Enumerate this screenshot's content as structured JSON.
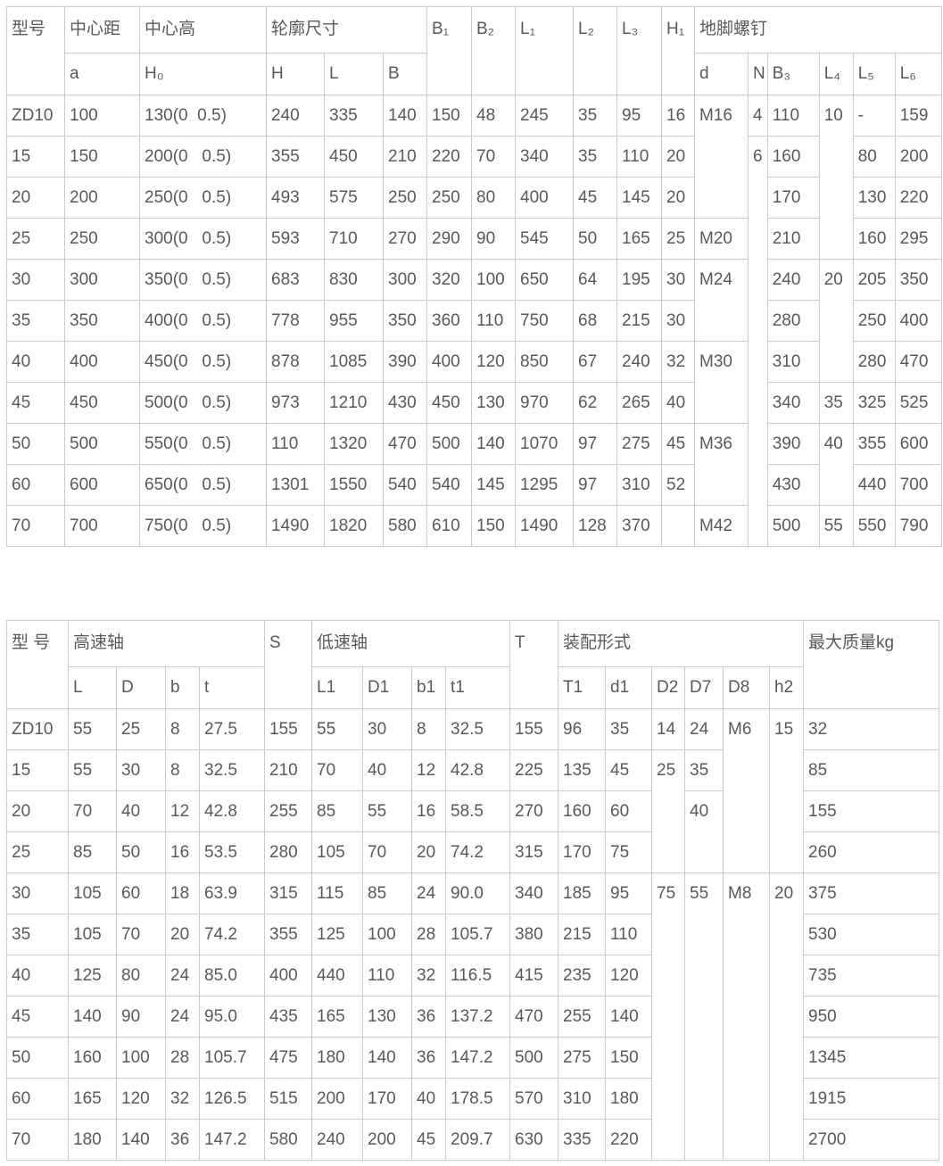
{
  "table1": {
    "header": [
      [
        {
          "t": "型号",
          "rs": 2
        },
        {
          "t": "中心距"
        },
        {
          "t": "中心高"
        },
        {
          "t": "轮廓尺寸",
          "cs": 3
        },
        {
          "t": "B₁",
          "rs": 2
        },
        {
          "t": "B₂",
          "rs": 2
        },
        {
          "t": "L₁",
          "rs": 2
        },
        {
          "t": "L₂",
          "rs": 2
        },
        {
          "t": "L₃",
          "rs": 2
        },
        {
          "t": "H₁",
          "rs": 2
        },
        {
          "t": "地脚螺钉",
          "cs": 6
        }
      ],
      [
        "a",
        "H₀",
        "H",
        "L",
        "B",
        "d",
        "N",
        "B₃",
        "L₄",
        "L₅",
        "L₆"
      ]
    ],
    "rows": [
      [
        "ZD10",
        "100",
        "130(0  0.5)",
        "240",
        "335",
        "140",
        "150",
        "48",
        "245",
        "35",
        "95",
        "16",
        {
          "t": "M16",
          "rs": 3
        },
        "4",
        "110",
        {
          "t": "10",
          "rs": 4
        },
        "-",
        "159"
      ],
      [
        "15",
        "150",
        "200(0   0.5)",
        "355",
        "450",
        "210",
        "220",
        "70",
        "340",
        "35",
        "110",
        "20",
        {
          "t": "6",
          "rs": 10
        },
        "160",
        "80",
        "200"
      ],
      [
        "20",
        "200",
        "250(0   0.5)",
        "493",
        "575",
        "250",
        "250",
        "80",
        "400",
        "45",
        "145",
        "20",
        "170",
        "130",
        "220"
      ],
      [
        "25",
        "250",
        "300(0   0.5)",
        "593",
        "710",
        "270",
        "290",
        "90",
        "545",
        "50",
        "165",
        "25",
        "M20",
        "210",
        "160",
        "295"
      ],
      [
        "30",
        "300",
        "350(0   0.5)",
        "683",
        "830",
        "300",
        "320",
        "100",
        "650",
        "64",
        "195",
        "30",
        {
          "t": "M24",
          "rs": 2
        },
        "240",
        {
          "t": "20",
          "rs": 3
        },
        "205",
        "350"
      ],
      [
        "35",
        "350",
        "400(0   0.5)",
        "778",
        "955",
        "350",
        "360",
        "110",
        "750",
        "68",
        "215",
        "30",
        "280",
        "250",
        "400"
      ],
      [
        "40",
        "400",
        "450(0   0.5)",
        "878",
        "1085",
        "390",
        "400",
        "120",
        "850",
        "67",
        "240",
        "32",
        {
          "t": "M30",
          "rs": 2
        },
        "310",
        "280",
        "470"
      ],
      [
        "45",
        "450",
        "500(0   0.5)",
        "973",
        "1210",
        "430",
        "450",
        "130",
        "970",
        "62",
        "265",
        "40",
        "340",
        "35",
        "325",
        "525"
      ],
      [
        "50",
        "500",
        "550(0   0.5)",
        "110",
        "1320",
        "470",
        "500",
        "140",
        "1070",
        "97",
        "275",
        "45",
        {
          "t": "M36",
          "rs": 2
        },
        "390",
        {
          "t": "40",
          "rs": 2
        },
        "355",
        "600"
      ],
      [
        "60",
        "600",
        "650(0   0.5)",
        "1301",
        "1550",
        "540",
        "540",
        "145",
        "1295",
        "97",
        "310",
        "52",
        "430",
        "440",
        "700"
      ],
      [
        "70",
        "700",
        "750(0   0.5)",
        "1490",
        "1820",
        "580",
        "610",
        "150",
        "1490",
        "128",
        "370",
        "",
        "M42",
        "500",
        "55",
        "550",
        "790"
      ]
    ]
  },
  "table2": {
    "header": [
      [
        {
          "t": "型 号",
          "rs": 2
        },
        {
          "t": "高速轴",
          "cs": 4
        },
        {
          "t": "S",
          "rs": 2
        },
        {
          "t": "低速轴",
          "cs": 4
        },
        {
          "t": "T",
          "rs": 2
        },
        {
          "t": "装配形式",
          "cs": 6
        },
        {
          "t": "最大质量kg",
          "rs": 2
        }
      ],
      [
        "L",
        "D",
        "b",
        "t",
        "L1",
        "D1",
        "b1",
        "t1",
        "T1",
        "d1",
        "D2",
        "D7",
        "D8",
        "h2"
      ]
    ],
    "rows": [
      [
        "ZD10",
        "55",
        "25",
        "8",
        "27.5",
        "155",
        "55",
        "30",
        "8",
        "32.5",
        "155",
        "96",
        "35",
        "14",
        "24",
        {
          "t": "M6",
          "rs": 4
        },
        {
          "t": "15",
          "rs": 4
        },
        "32"
      ],
      [
        "15",
        "55",
        "30",
        "8",
        "32.5",
        "210",
        "70",
        "40",
        "12",
        "42.8",
        "225",
        "135",
        "45",
        {
          "t": "25",
          "rs": 3
        },
        "35",
        "85"
      ],
      [
        "20",
        "70",
        "40",
        "12",
        "42.8",
        "255",
        "85",
        "55",
        "16",
        "58.5",
        "270",
        "160",
        "60",
        {
          "t": "40",
          "rs": 2
        },
        "155"
      ],
      [
        "25",
        "85",
        "50",
        "16",
        "53.5",
        "280",
        "105",
        "70",
        "20",
        "74.2",
        "315",
        "170",
        "75",
        "260"
      ],
      [
        "30",
        "105",
        "60",
        "18",
        "63.9",
        "315",
        "115",
        "85",
        "24",
        "90.0",
        "340",
        "185",
        "95",
        {
          "t": "75",
          "rs": 7
        },
        {
          "t": "55",
          "rs": 7
        },
        {
          "t": "M8",
          "rs": 7
        },
        {
          "t": "20",
          "rs": 7
        },
        "375"
      ],
      [
        "35",
        "105",
        "70",
        "20",
        "74.2",
        "355",
        "125",
        "100",
        "28",
        "105.7",
        "380",
        "215",
        "110",
        "530"
      ],
      [
        "40",
        "125",
        "80",
        "24",
        "85.0",
        "400",
        "440",
        "110",
        "32",
        "116.5",
        "415",
        "235",
        "120",
        "735"
      ],
      [
        "45",
        "140",
        "90",
        "24",
        "95.0",
        "435",
        "165",
        "130",
        "36",
        "137.2",
        "470",
        "255",
        "140",
        "950"
      ],
      [
        "50",
        "160",
        "100",
        "28",
        "105.7",
        "475",
        "180",
        "140",
        "36",
        "147.2",
        "500",
        "275",
        "150",
        "1345"
      ],
      [
        "60",
        "165",
        "120",
        "32",
        "126.5",
        "515",
        "200",
        "170",
        "40",
        "178.5",
        "570",
        "310",
        "180",
        "1915"
      ],
      [
        "70",
        "180",
        "140",
        "36",
        "147.2",
        "580",
        "240",
        "200",
        "45",
        "209.7",
        "630",
        "335",
        "220",
        "2700"
      ]
    ]
  }
}
